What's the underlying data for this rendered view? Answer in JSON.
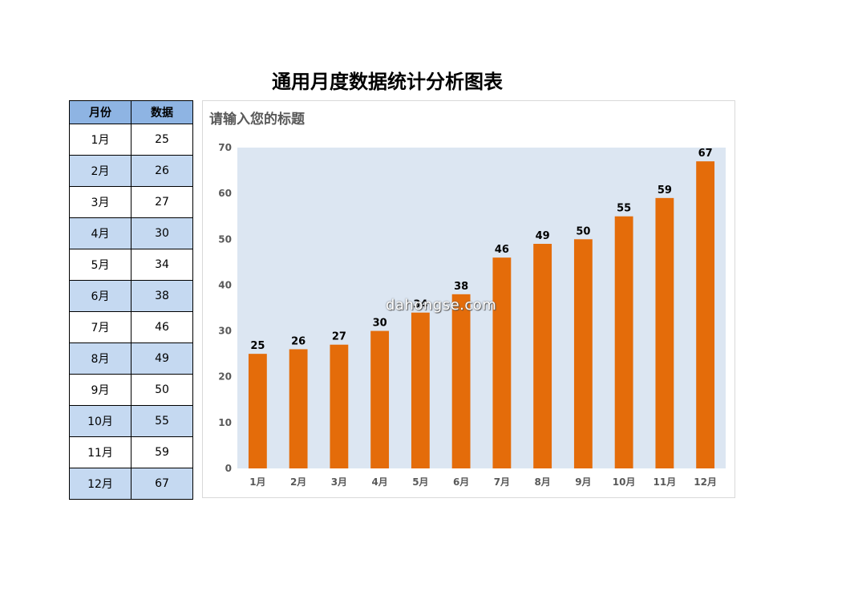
{
  "page_title": "通用月度数据统计分析图表",
  "table": {
    "headers": [
      "月份",
      "数据"
    ],
    "rows": [
      [
        "1月",
        "25"
      ],
      [
        "2月",
        "26"
      ],
      [
        "3月",
        "27"
      ],
      [
        "4月",
        "30"
      ],
      [
        "5月",
        "34"
      ],
      [
        "6月",
        "38"
      ],
      [
        "7月",
        "46"
      ],
      [
        "8月",
        "49"
      ],
      [
        "9月",
        "50"
      ],
      [
        "10月",
        "55"
      ],
      [
        "11月",
        "59"
      ],
      [
        "12月",
        "67"
      ]
    ]
  },
  "watermark": "dahongse.com",
  "colors": {
    "bar": "#e46c0a",
    "plot_background": "#dce6f2",
    "header_fill": "#8eb4e3",
    "alt_row_fill": "#c5d9f1"
  },
  "chart_data": {
    "type": "bar",
    "title": "请输入您的标题",
    "categories": [
      "1月",
      "2月",
      "3月",
      "4月",
      "5月",
      "6月",
      "7月",
      "8月",
      "9月",
      "10月",
      "11月",
      "12月"
    ],
    "values": [
      25,
      26,
      27,
      30,
      34,
      38,
      46,
      49,
      50,
      55,
      59,
      67
    ],
    "yticks": [
      "0",
      "10",
      "20",
      "30",
      "40",
      "50",
      "60",
      "70"
    ],
    "ylim": [
      0,
      70
    ],
    "xlabel": "",
    "ylabel": "",
    "grid": false,
    "legend": "none"
  }
}
